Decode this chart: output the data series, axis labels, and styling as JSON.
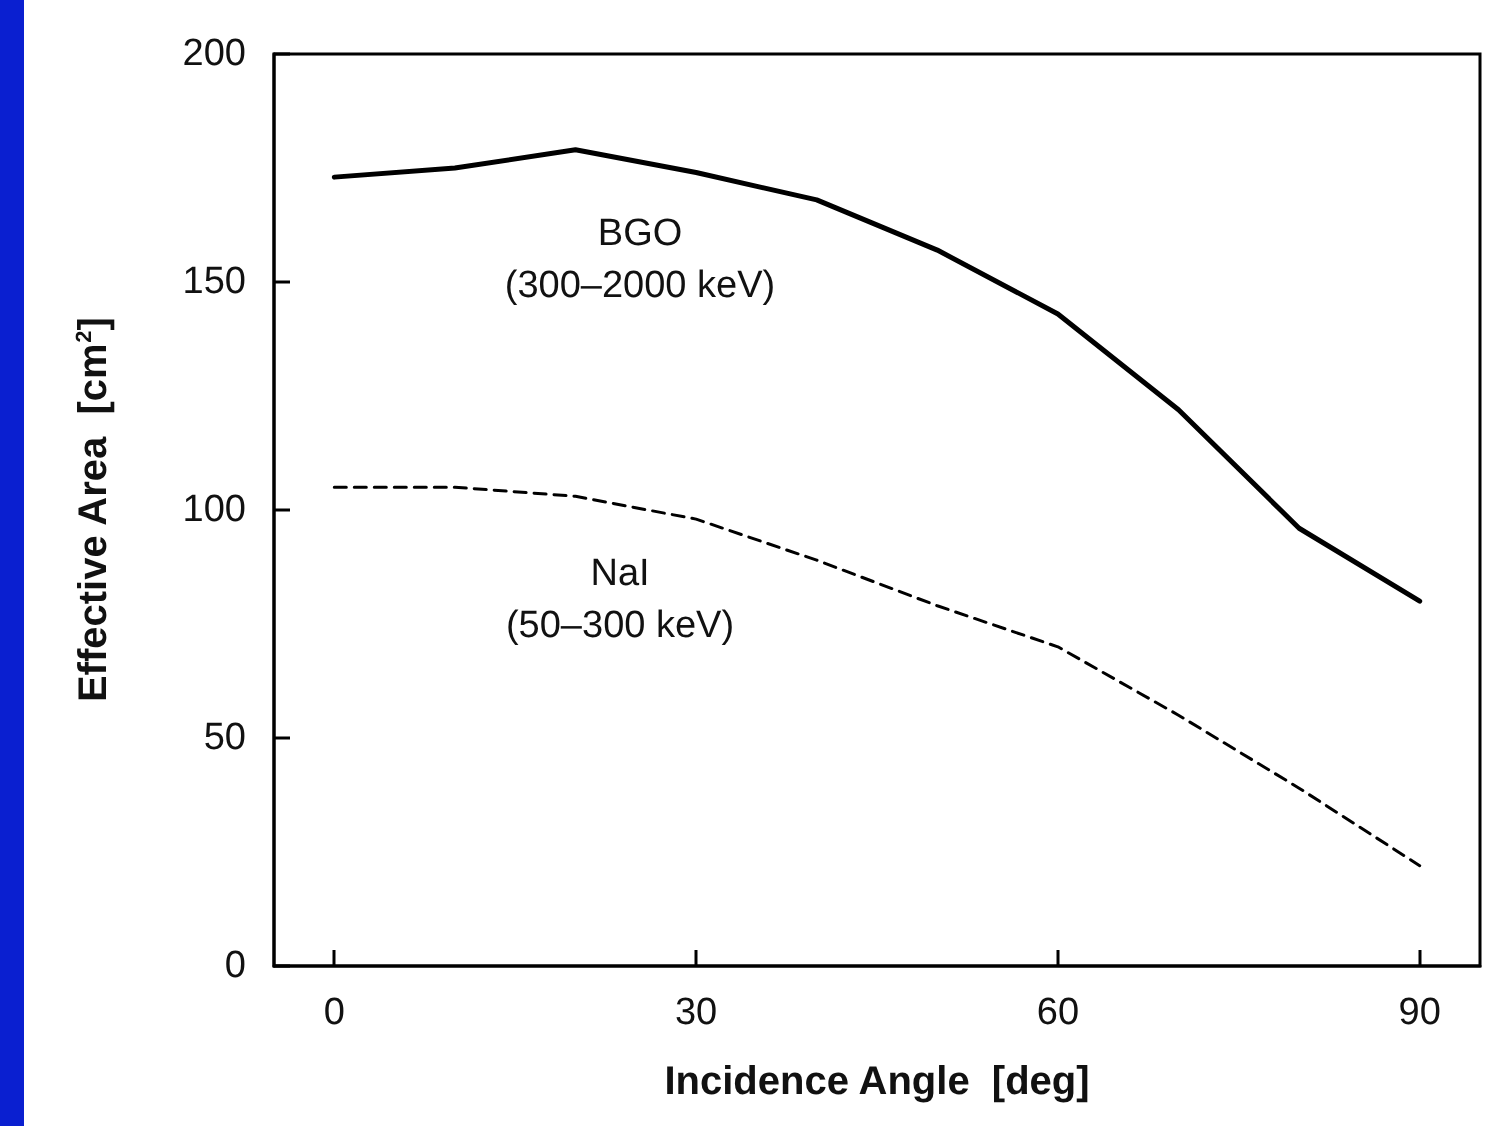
{
  "chart_data": {
    "type": "line",
    "xlabel": "Incidence Angle  [deg]",
    "ylabel": "Effective Area  [cm$^{2}$]",
    "x": [
      0,
      10,
      20,
      30,
      40,
      50,
      60,
      70,
      80,
      90
    ],
    "series": [
      {
        "color": "#000000",
        "line_style": "solid",
        "values": [
          173,
          175,
          179,
          174,
          168,
          157,
          143,
          122,
          96,
          80
        ]
      },
      {
        "color": "#000000",
        "line_style": "dashed",
        "values": [
          105,
          105,
          103,
          98,
          89,
          79,
          70,
          55,
          39,
          22
        ]
      }
    ],
    "xlim": [
      -5,
      95
    ],
    "xticks": [
      0,
      30,
      60,
      90
    ],
    "ylim": [
      0,
      200
    ],
    "yticks": [
      0,
      50,
      100,
      150,
      200
    ],
    "marker": "none",
    "annotations": [
      "BGO\n(300–2000 keV)",
      "NaI\n(50–300 keV)"
    ]
  }
}
